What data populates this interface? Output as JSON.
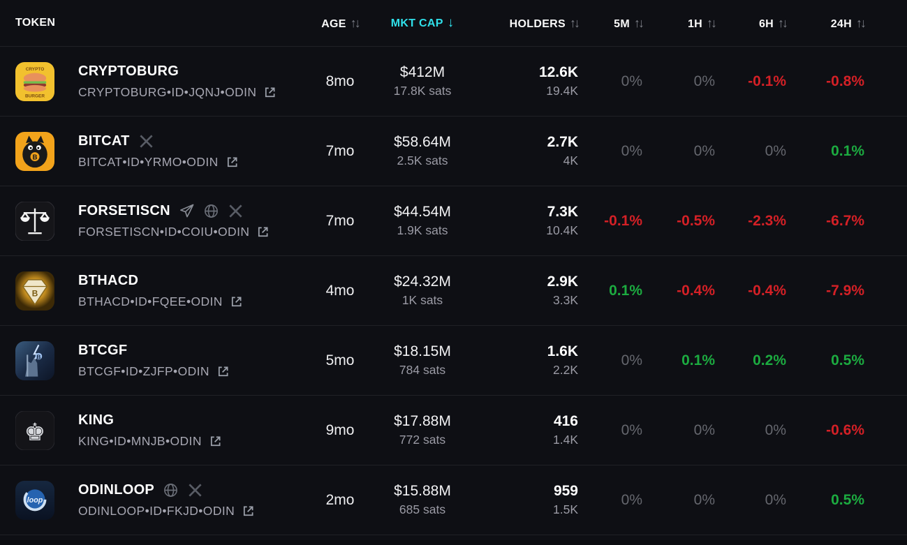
{
  "colors": {
    "accent": "#30e0ea",
    "positive": "#1cab40",
    "negative": "#d42026",
    "muted_zero": "#65676e"
  },
  "header": {
    "sort_arrows": "↑↓",
    "active_sort_arrow": "↓",
    "columns": [
      {
        "label": "TOKEN",
        "sortable": false
      },
      {
        "label": "AGE",
        "sortable": true
      },
      {
        "label": "MKT CAP",
        "sortable": true,
        "active": true,
        "direction": "desc"
      },
      {
        "label": "HOLDERS",
        "sortable": true
      },
      {
        "label": "5M",
        "sortable": true
      },
      {
        "label": "1H",
        "sortable": true
      },
      {
        "label": "6H",
        "sortable": true
      },
      {
        "label": "24H",
        "sortable": true
      }
    ]
  },
  "rows": [
    {
      "name": "CRYPTOBURG",
      "icon": "burger-logo",
      "socials": [],
      "subtitle": "CRYPTOBURG•ID•JQNJ•ODIN",
      "age": "8mo",
      "mktcap_usd": "$412M",
      "mktcap_sats": "17.8K sats",
      "holders": "12.6K",
      "holders_sub": "19.4K",
      "pct": {
        "5m": "0%",
        "1h": "0%",
        "6h": "-0.1%",
        "24h": "-0.8%"
      }
    },
    {
      "name": "BITCAT",
      "icon": "bitcat-logo",
      "socials": [
        "x-icon"
      ],
      "subtitle": "BITCAT•ID•YRMO•ODIN",
      "age": "7mo",
      "mktcap_usd": "$58.64M",
      "mktcap_sats": "2.5K sats",
      "holders": "2.7K",
      "holders_sub": "4K",
      "pct": {
        "5m": "0%",
        "1h": "0%",
        "6h": "0%",
        "24h": "0.1%"
      }
    },
    {
      "name": "FORSETISCN",
      "icon": "scales-logo",
      "socials": [
        "telegram-icon",
        "globe-icon",
        "x-icon"
      ],
      "subtitle": "FORSETISCN•ID•COIU•ODIN",
      "age": "7mo",
      "mktcap_usd": "$44.54M",
      "mktcap_sats": "1.9K sats",
      "holders": "7.3K",
      "holders_sub": "10.4K",
      "pct": {
        "5m": "-0.1%",
        "1h": "-0.5%",
        "6h": "-2.3%",
        "24h": "-6.7%"
      }
    },
    {
      "name": "BTHACD",
      "icon": "diamond-logo",
      "socials": [],
      "subtitle": "BTHACD•ID•FQEE•ODIN",
      "age": "4mo",
      "mktcap_usd": "$24.32M",
      "mktcap_sats": "1K sats",
      "holders": "2.9K",
      "holders_sub": "3.3K",
      "pct": {
        "5m": "0.1%",
        "1h": "-0.4%",
        "6h": "-0.4%",
        "24h": "-7.9%"
      }
    },
    {
      "name": "BTCGF",
      "icon": "wizard-logo",
      "socials": [],
      "subtitle": "BTCGF•ID•ZJFP•ODIN",
      "age": "5mo",
      "mktcap_usd": "$18.15M",
      "mktcap_sats": "784 sats",
      "holders": "1.6K",
      "holders_sub": "2.2K",
      "pct": {
        "5m": "0%",
        "1h": "0.1%",
        "6h": "0.2%",
        "24h": "0.5%"
      }
    },
    {
      "name": "KING",
      "icon": "king-logo",
      "socials": [],
      "subtitle": "KING•ID•MNJB•ODIN",
      "age": "9mo",
      "mktcap_usd": "$17.88M",
      "mktcap_sats": "772 sats",
      "holders": "416",
      "holders_sub": "1.4K",
      "pct": {
        "5m": "0%",
        "1h": "0%",
        "6h": "0%",
        "24h": "-0.6%"
      }
    },
    {
      "name": "ODINLOOP",
      "icon": "loop-logo",
      "socials": [
        "globe-icon",
        "x-icon"
      ],
      "subtitle": "ODINLOOP•ID•FKJD•ODIN",
      "age": "2mo",
      "mktcap_usd": "$15.88M",
      "mktcap_sats": "685 sats",
      "holders": "959",
      "holders_sub": "1.5K",
      "pct": {
        "5m": "0%",
        "1h": "0%",
        "6h": "0%",
        "24h": "0.5%"
      }
    }
  ]
}
